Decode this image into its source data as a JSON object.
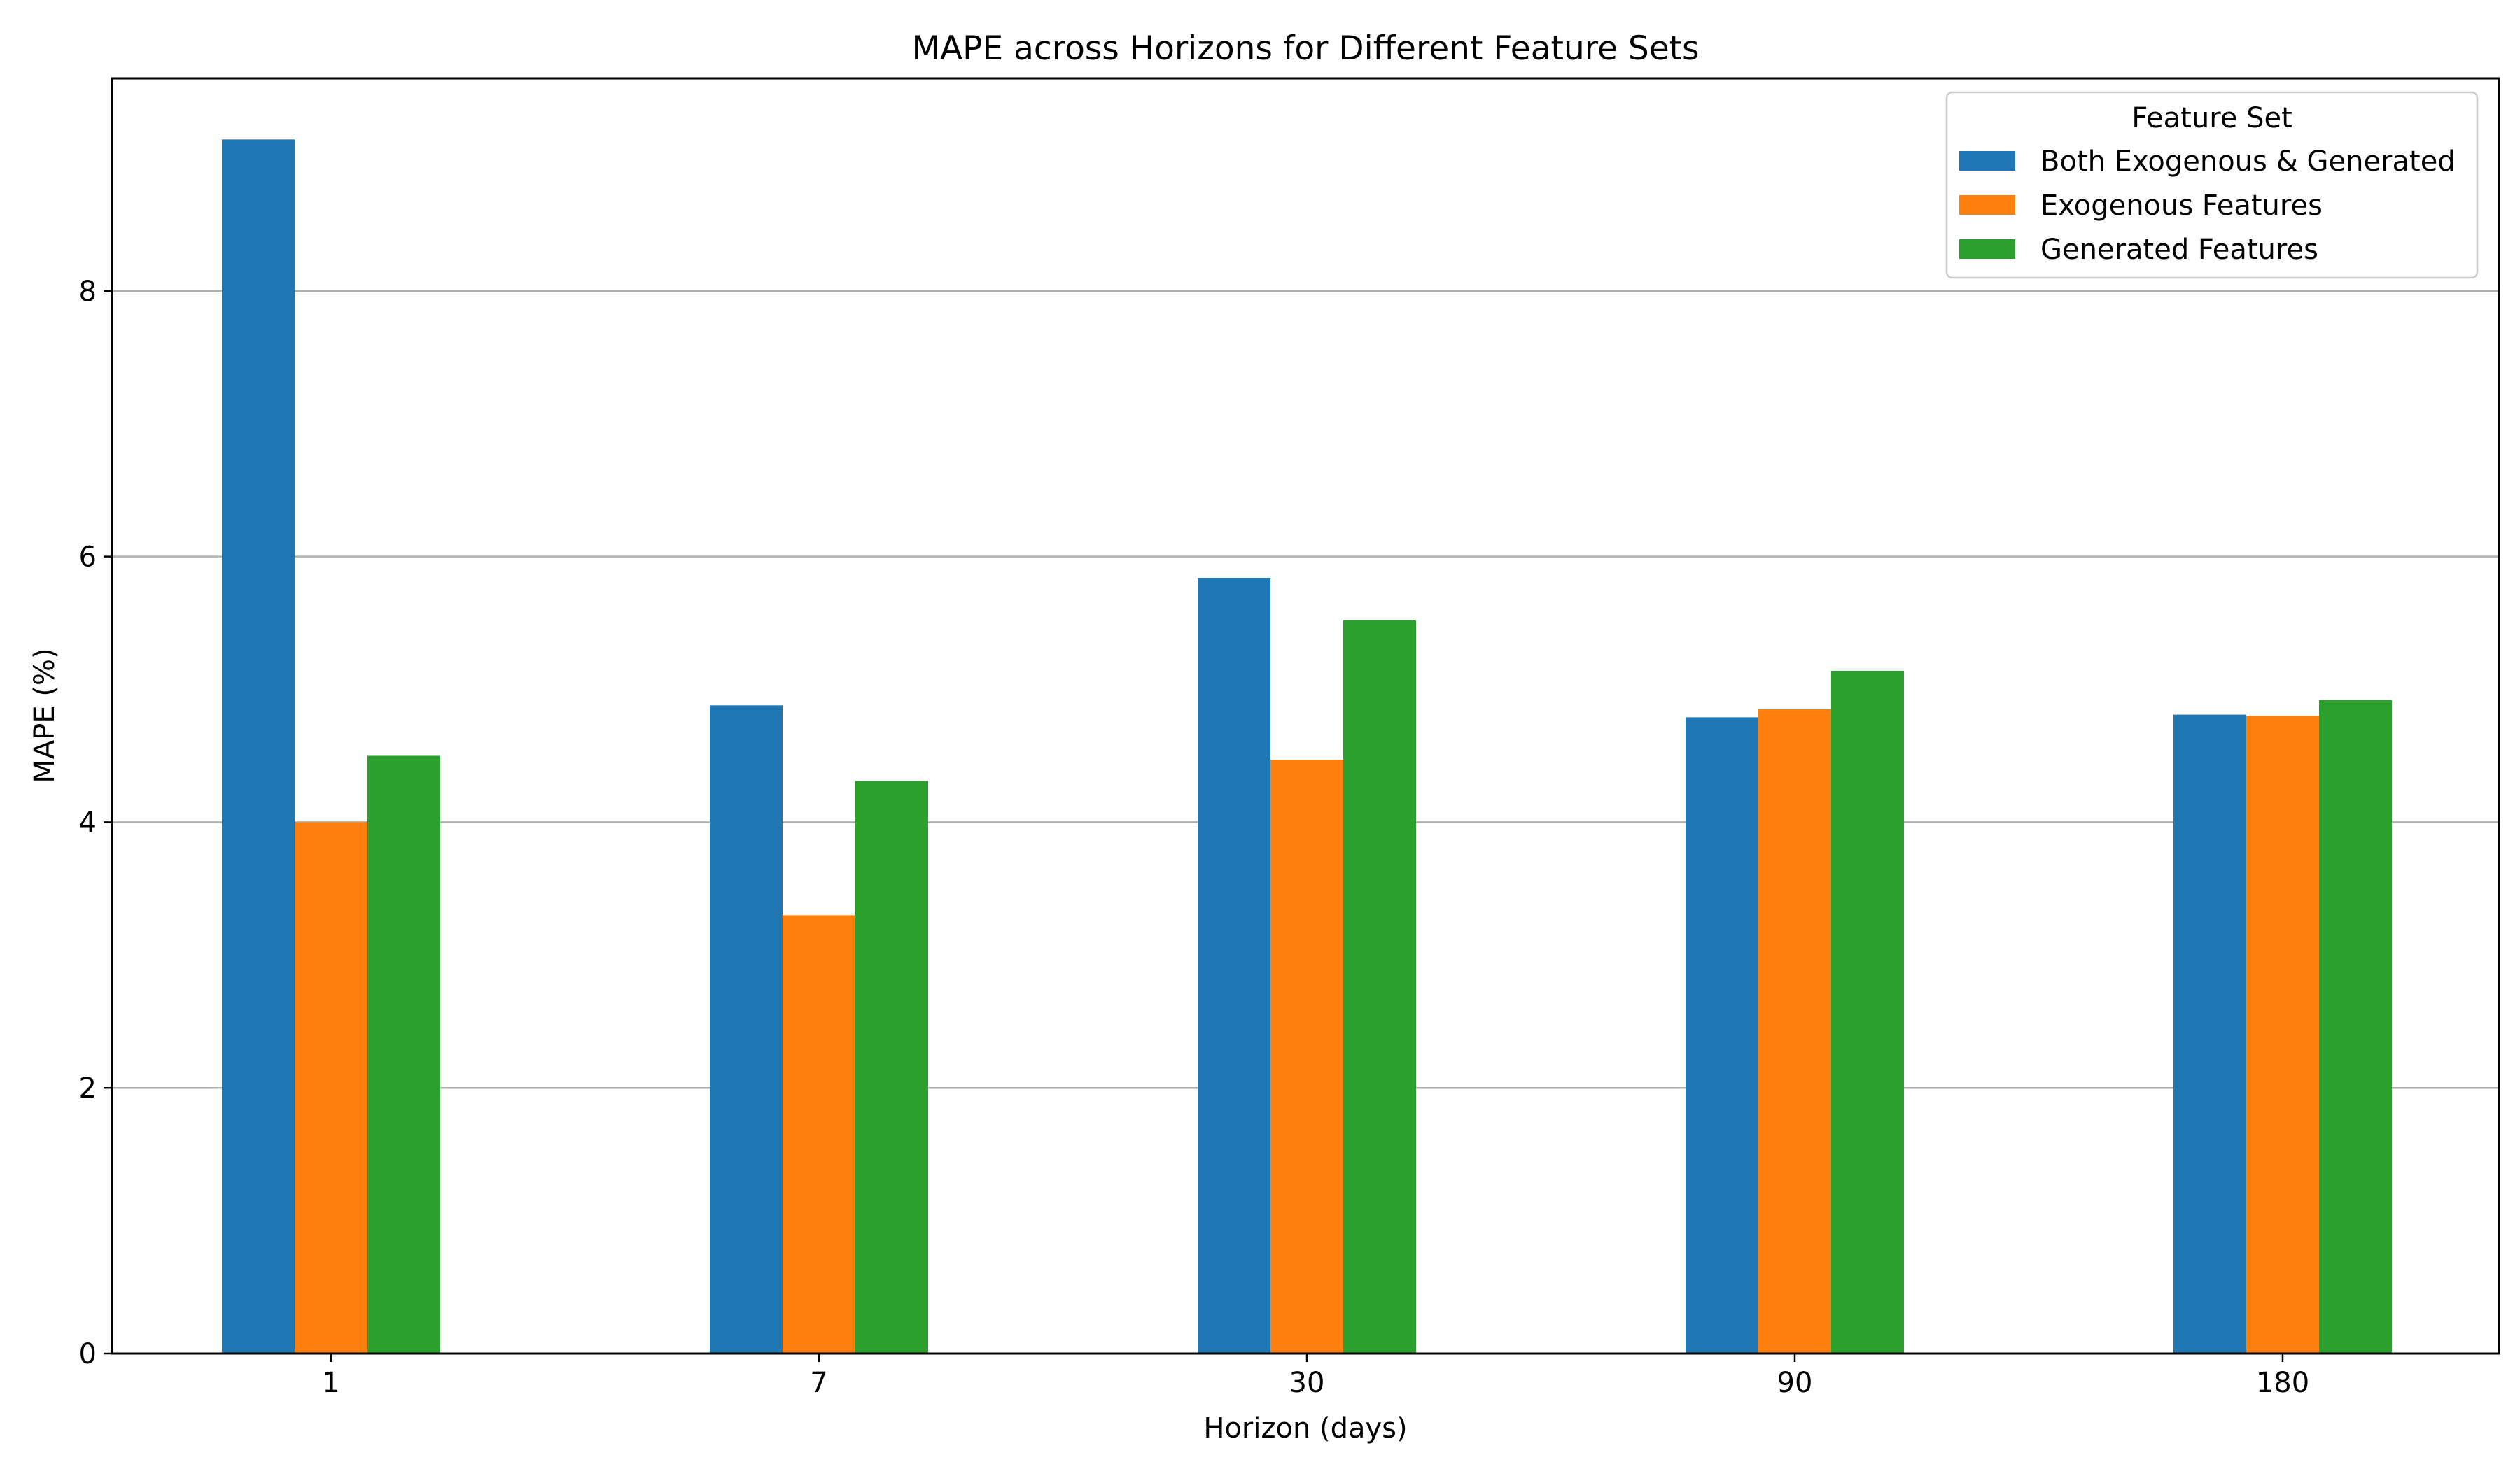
{
  "chart_data": {
    "type": "bar",
    "title": "MAPE across Horizons for Different Feature Sets",
    "xlabel": "Horizon (days)",
    "ylabel": "MAPE (%)",
    "categories": [
      "1",
      "7",
      "30",
      "90",
      "180"
    ],
    "ylim": [
      0,
      9.6
    ],
    "yticks": [
      0,
      2,
      4,
      6,
      8
    ],
    "grid": "horizontal",
    "legend": {
      "title": "Feature Set",
      "placement": "upper right"
    },
    "series": [
      {
        "name": "Both Exogenous & Generated",
        "color": "#1f77b4",
        "values": [
          9.14,
          4.88,
          5.84,
          4.79,
          4.81
        ]
      },
      {
        "name": "Exogenous Features",
        "color": "#ff7f0e",
        "values": [
          4.0,
          3.3,
          4.47,
          4.85,
          4.8
        ]
      },
      {
        "name": "Generated Features",
        "color": "#2ca02c",
        "values": [
          4.5,
          4.31,
          5.52,
          5.14,
          4.92
        ]
      }
    ]
  }
}
